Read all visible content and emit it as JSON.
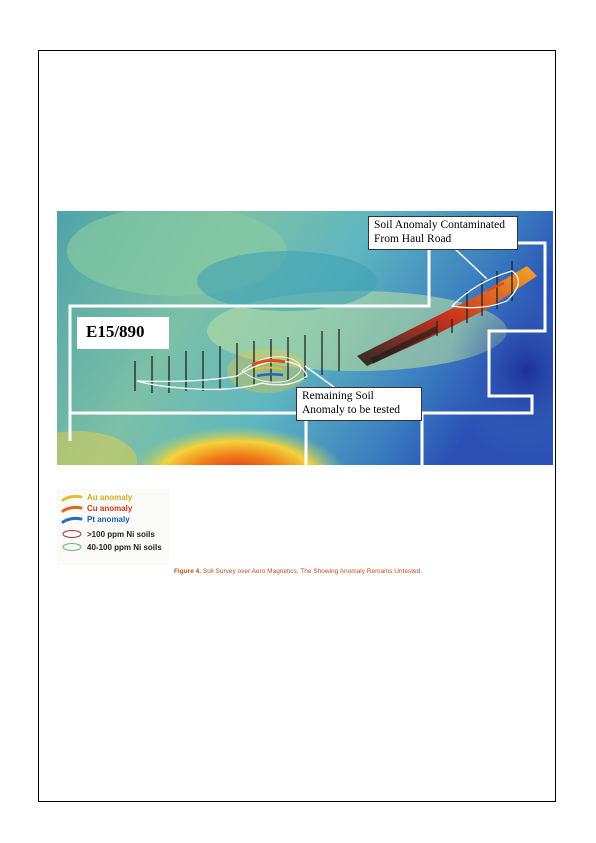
{
  "map": {
    "tenement_label": "E15/890",
    "annotation_top": "Soil Anomaly Contaminated From Haul Road",
    "annotation_mid": "Remaining Soil Anomaly to be tested"
  },
  "legend": {
    "items": [
      {
        "label": "Au anomaly",
        "color": "#c9b21c",
        "icon": "yellow-stroke"
      },
      {
        "label": "Cu anomaly",
        "color": "#c9371a",
        "icon": "orange-stroke"
      },
      {
        "label": "Pt anomaly",
        "color": "#1e5fa8",
        "icon": "blue-stroke"
      },
      {
        "label": ">100 ppm Ni soils",
        "color": "#b03040",
        "icon": "red-ellipse"
      },
      {
        "label": "40-100 ppm Ni soils",
        "color": "#6bb86b",
        "icon": "green-ellipse"
      }
    ]
  },
  "caption": {
    "figure": "Figure 4.",
    "text": "Soil Survey over Aero Magnetics. The Showing Anomaly Remains Untested."
  }
}
